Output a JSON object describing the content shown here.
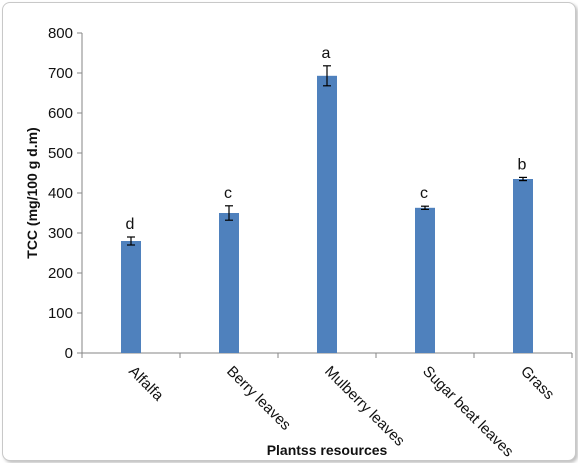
{
  "chart_data": {
    "type": "bar",
    "categories": [
      "Alfalfa",
      "Berry leaves",
      "Mulberry leaves",
      "Sugar beat leaves",
      "Grass"
    ],
    "values": [
      280,
      350,
      693,
      363,
      435
    ],
    "errors": [
      10,
      18,
      25,
      4,
      4
    ],
    "letters": [
      "d",
      "c",
      "a",
      "c",
      "b"
    ],
    "xlabel": "Plantss resources",
    "ylabel": "TCC (mg/100 g d.m)",
    "ylim": [
      0,
      800
    ],
    "yticks": [
      0,
      100,
      200,
      300,
      400,
      500,
      600,
      700,
      800
    ],
    "grid": false,
    "legend": "none",
    "bar_color": "#4f81bd"
  }
}
